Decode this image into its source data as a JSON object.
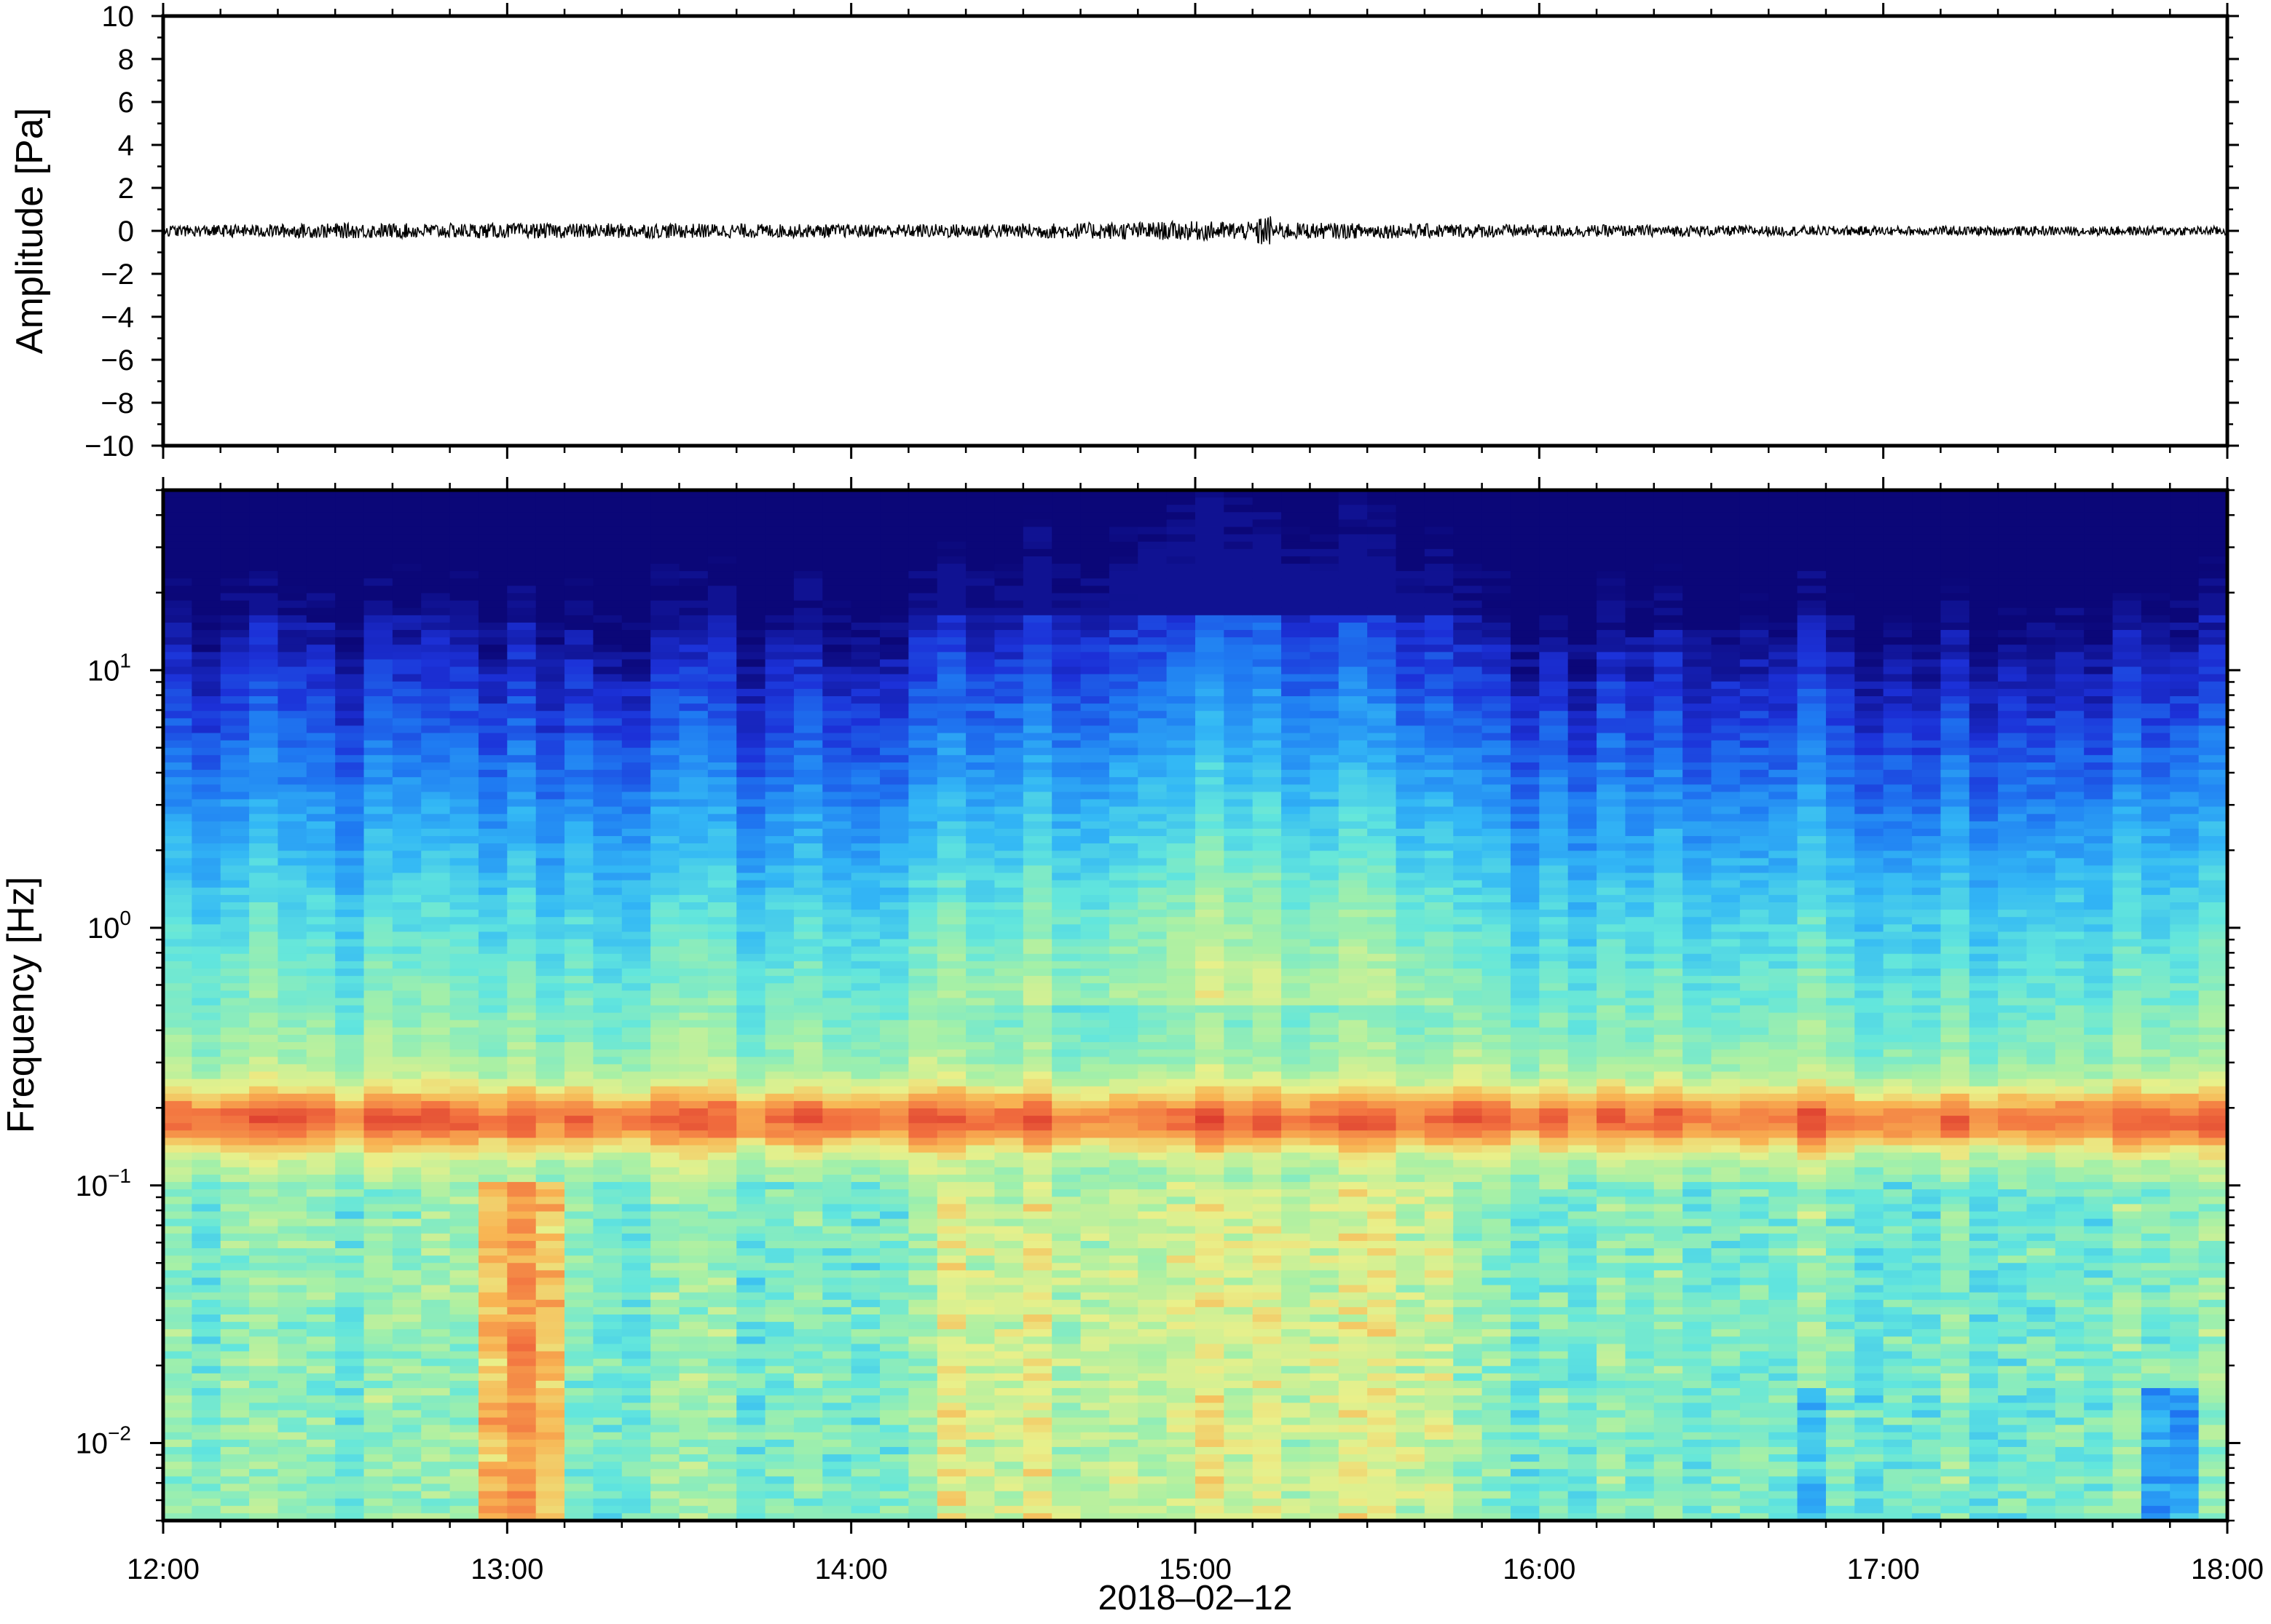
{
  "chart_data": [
    {
      "type": "line",
      "panel": "waveform",
      "ylabel": "Amplitude [Pa]",
      "ylim": [
        -10,
        10
      ],
      "yticks": [
        10,
        8,
        6,
        4,
        2,
        0,
        -2,
        -4,
        -6,
        -8,
        -10
      ],
      "ytick_labels": [
        "10",
        "8",
        "6",
        "4",
        "2",
        "0",
        "−2",
        "−4",
        "−6",
        "−8",
        "−10"
      ],
      "xlim": [
        "12:00",
        "18:00"
      ],
      "grid": false,
      "series": [
        {
          "color": "#000000",
          "x": [
            "12:00",
            "12:30",
            "13:00",
            "13:30",
            "14:00",
            "14:30",
            "15:00",
            "15:30",
            "16:00",
            "16:30",
            "17:00",
            "17:30",
            "18:00"
          ],
          "envelope_pa": [
            0.25,
            0.35,
            0.35,
            0.35,
            0.3,
            0.35,
            0.45,
            0.35,
            0.3,
            0.25,
            0.22,
            0.22,
            0.22
          ]
        }
      ]
    },
    {
      "type": "heatmap",
      "panel": "spectrogram",
      "ylabel": "Frequency [Hz]",
      "xlabel": "2018–02–12",
      "yscale": "log",
      "ylim_hz": [
        0.005,
        50
      ],
      "ytick_labels": [
        {
          "value": 10,
          "base": "10",
          "exp": "1"
        },
        {
          "value": 1,
          "base": "10",
          "exp": "0"
        },
        {
          "value": 0.1,
          "base": "10",
          "exp": "−1"
        },
        {
          "value": 0.01,
          "base": "10",
          "exp": "−2"
        }
      ],
      "x_tick_labels": [
        "12:00",
        "13:00",
        "14:00",
        "15:00",
        "16:00",
        "17:00",
        "18:00"
      ],
      "time_columns": 72,
      "colormap": [
        "#0b0778",
        "#1c31d8",
        "#1f7bf2",
        "#33b8f5",
        "#62e6dd",
        "#a6f0a6",
        "#e9f08a",
        "#f8b553",
        "#f2703f",
        "#d7302b"
      ],
      "band_peak_hz": 0.18,
      "event_columns": [
        {
          "start": "12:55",
          "end": "13:10",
          "freq_hz": [
            0.01,
            0.1
          ],
          "level": "high"
        },
        {
          "start": "14:15",
          "end": "15:45",
          "freq_hz": [
            0.5,
            25
          ],
          "level": "elevated"
        }
      ]
    }
  ]
}
